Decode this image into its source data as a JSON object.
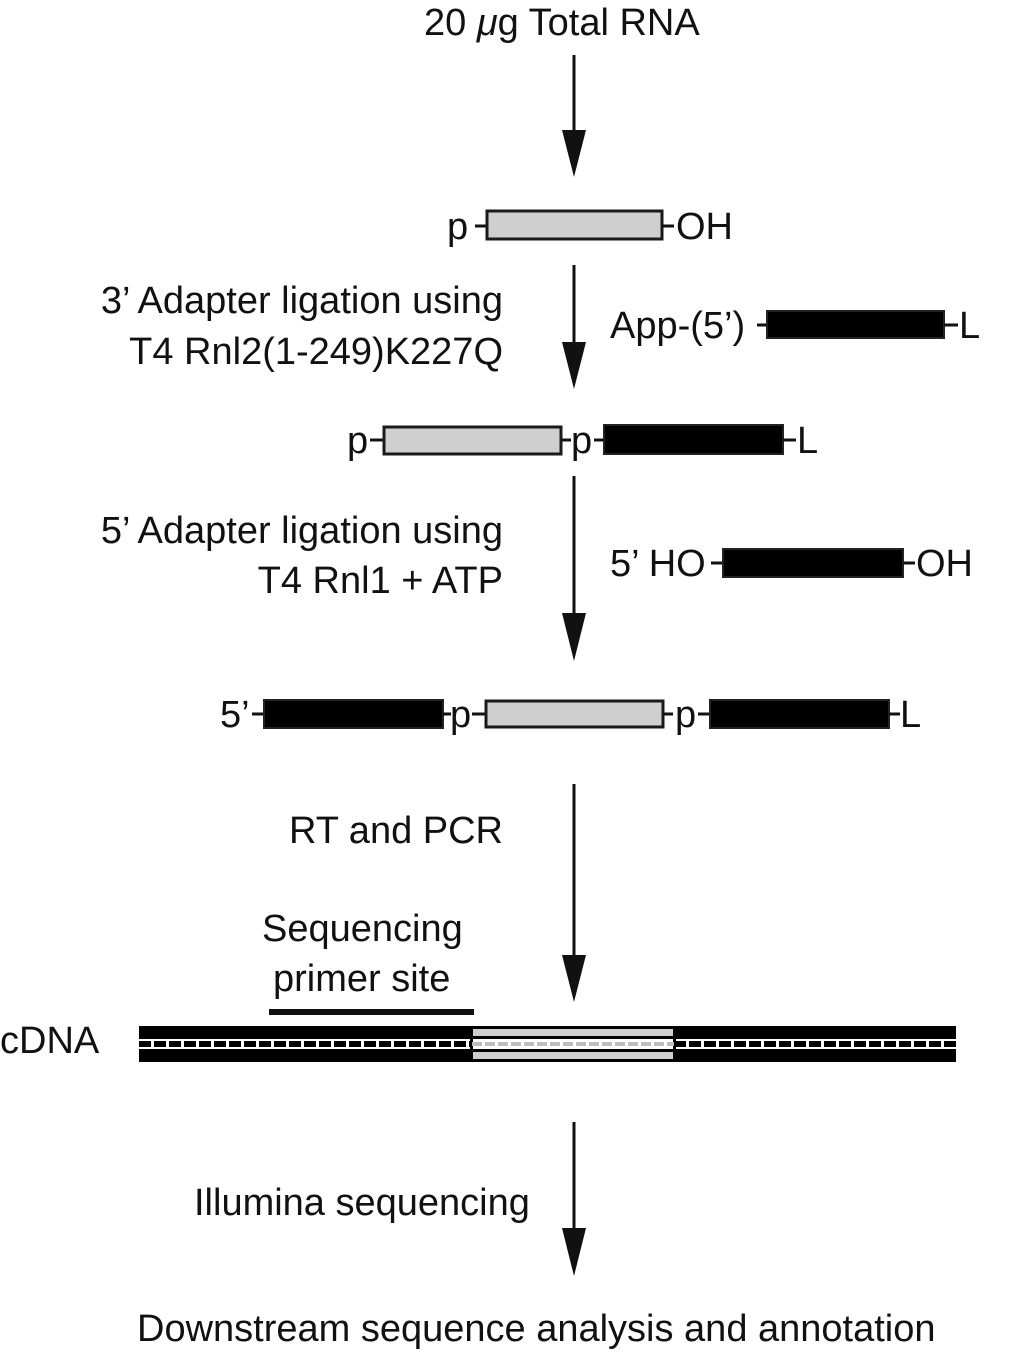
{
  "title": {
    "prefix": "20 ",
    "unit": "μ",
    "suffix": "g Total RNA"
  },
  "step1_labels": {
    "p": "p",
    "oh": "OH"
  },
  "ligation3": {
    "line1": "3’ Adapter ligation using",
    "line2": "T4 Rnl2(1-249)K227Q",
    "adapter_prefix": "App-(5’)",
    "adapter_suffix": "L"
  },
  "step2_labels": {
    "p1": "p",
    "p2": "p",
    "l": "L"
  },
  "ligation5": {
    "line1": "5’ Adapter ligation using",
    "line2": "T4 Rnl1 + ATP",
    "adapter_prefix": "5’ HO",
    "adapter_suffix": "OH"
  },
  "step3_labels": {
    "five": "5’",
    "p1": "p",
    "p2": "p",
    "l": "L"
  },
  "rt_pcr": "RT and PCR",
  "primer_site": {
    "line1": "Sequencing",
    "line2": "primer site"
  },
  "cdna_label": "cDNA",
  "illumina": "Illumina sequencing",
  "final": "Downstream sequence analysis and annotation",
  "colors": {
    "rna_fill": "#cfcfcf",
    "adapter_fill": "#000000",
    "stroke": "#1a1a1a"
  }
}
